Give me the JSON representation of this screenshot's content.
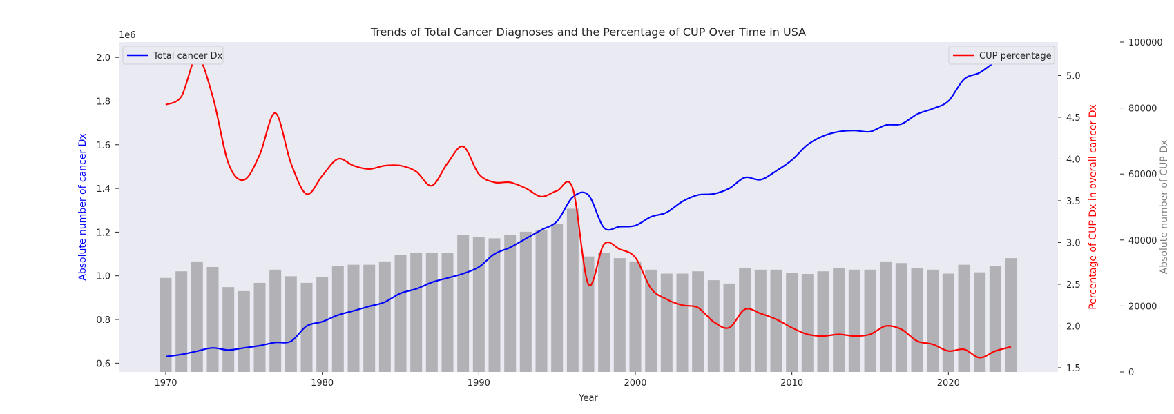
{
  "chart_data": {
    "type": "bar+line",
    "title": "Trends of Total Cancer Diagnoses and the Percentage of CUP Over Time in USA",
    "xlabel": "Year",
    "x_ticks": [
      1970,
      1980,
      1990,
      2000,
      2010,
      2020
    ],
    "xlim": [
      1967,
      2027
    ],
    "background_color": "#eaeaf2",
    "grid": false,
    "left_axis": {
      "label": "Absolute number of cancer Dx",
      "color": "#0000ff",
      "offset_text": "1e6",
      "ylim": [
        0.56,
        2.07
      ],
      "ticks": [
        "0.6",
        "0.8",
        "1.0",
        "1.2",
        "1.4",
        "1.6",
        "1.8",
        "2.0"
      ]
    },
    "right_axis_1": {
      "label": "Percentage of CUP Dx in overall cancer Dx",
      "color": "#ff0000",
      "ylim": [
        1.45,
        5.4
      ],
      "ticks": [
        "1.5",
        "2.0",
        "2.5",
        "3.0",
        "3.5",
        "4.0",
        "4.5",
        "5.0"
      ]
    },
    "right_axis_2": {
      "label": "Absolute number of CUP Dx",
      "color": "#808080",
      "ylim": [
        0,
        100000
      ],
      "ticks": [
        "0",
        "20000",
        "40000",
        "60000",
        "80000",
        "100000"
      ]
    },
    "years": [
      1970,
      1971,
      1972,
      1973,
      1974,
      1975,
      1976,
      1977,
      1978,
      1979,
      1980,
      1981,
      1982,
      1983,
      1984,
      1985,
      1986,
      1987,
      1988,
      1989,
      1990,
      1991,
      1992,
      1993,
      1994,
      1995,
      1996,
      1997,
      1998,
      1999,
      2000,
      2001,
      2002,
      2003,
      2004,
      2005,
      2006,
      2007,
      2008,
      2009,
      2010,
      2011,
      2012,
      2013,
      2014,
      2015,
      2016,
      2017,
      2018,
      2019,
      2020,
      2021,
      2022,
      2023,
      2024
    ],
    "series": [
      {
        "name": "Total cancer Dx",
        "type": "line",
        "axis": "left",
        "color": "#0000ff",
        "values": [
          0.63,
          0.64,
          0.655,
          0.67,
          0.66,
          0.67,
          0.68,
          0.695,
          0.7,
          0.77,
          0.79,
          0.82,
          0.84,
          0.86,
          0.88,
          0.92,
          0.94,
          0.97,
          0.99,
          1.01,
          1.04,
          1.1,
          1.13,
          1.17,
          1.21,
          1.25,
          1.36,
          1.37,
          1.22,
          1.225,
          1.23,
          1.27,
          1.29,
          1.34,
          1.37,
          1.375,
          1.4,
          1.45,
          1.44,
          1.48,
          1.53,
          1.6,
          1.64,
          1.66,
          1.665,
          1.66,
          1.69,
          1.695,
          1.74,
          1.765,
          1.8,
          1.9,
          1.93,
          1.98,
          2.02
        ]
      },
      {
        "name": "CUP percentage",
        "type": "line",
        "axis": "right_1",
        "color": "#ff0000",
        "values": [
          4.65,
          4.75,
          5.22,
          4.75,
          3.95,
          3.75,
          4.05,
          4.55,
          3.95,
          3.58,
          3.8,
          4.0,
          3.92,
          3.88,
          3.92,
          3.92,
          3.85,
          3.68,
          3.95,
          4.15,
          3.82,
          3.72,
          3.72,
          3.65,
          3.55,
          3.62,
          3.65,
          2.5,
          2.98,
          2.92,
          2.82,
          2.45,
          2.32,
          2.25,
          2.22,
          2.05,
          1.98,
          2.2,
          2.15,
          2.08,
          1.98,
          1.9,
          1.88,
          1.9,
          1.88,
          1.9,
          2.0,
          1.96,
          1.82,
          1.78,
          1.7,
          1.72,
          1.62,
          1.7,
          1.75
        ]
      },
      {
        "name": "Absolute number of CUP Dx",
        "type": "bar",
        "axis": "right_2",
        "color": "#b2b2b6",
        "values": [
          28500,
          30500,
          33500,
          31800,
          25700,
          24500,
          27000,
          31000,
          29000,
          27000,
          28700,
          32000,
          32500,
          32500,
          33500,
          35500,
          36000,
          36000,
          36000,
          41500,
          41000,
          40500,
          41500,
          42500,
          43000,
          44800,
          49500,
          35000,
          36000,
          34500,
          33500,
          31000,
          29800,
          29800,
          30500,
          27800,
          26800,
          31500,
          31000,
          31000,
          30000,
          29700,
          30500,
          31400,
          31000,
          31000,
          33500,
          33000,
          31500,
          31000,
          29800,
          32500,
          30200,
          32000,
          34500
        ]
      }
    ],
    "legend": [
      {
        "label": "Total cancer Dx",
        "color": "#0000ff",
        "placement": "upper-left"
      },
      {
        "label": "CUP percentage",
        "color": "#ff0000",
        "placement": "upper-right"
      }
    ]
  }
}
